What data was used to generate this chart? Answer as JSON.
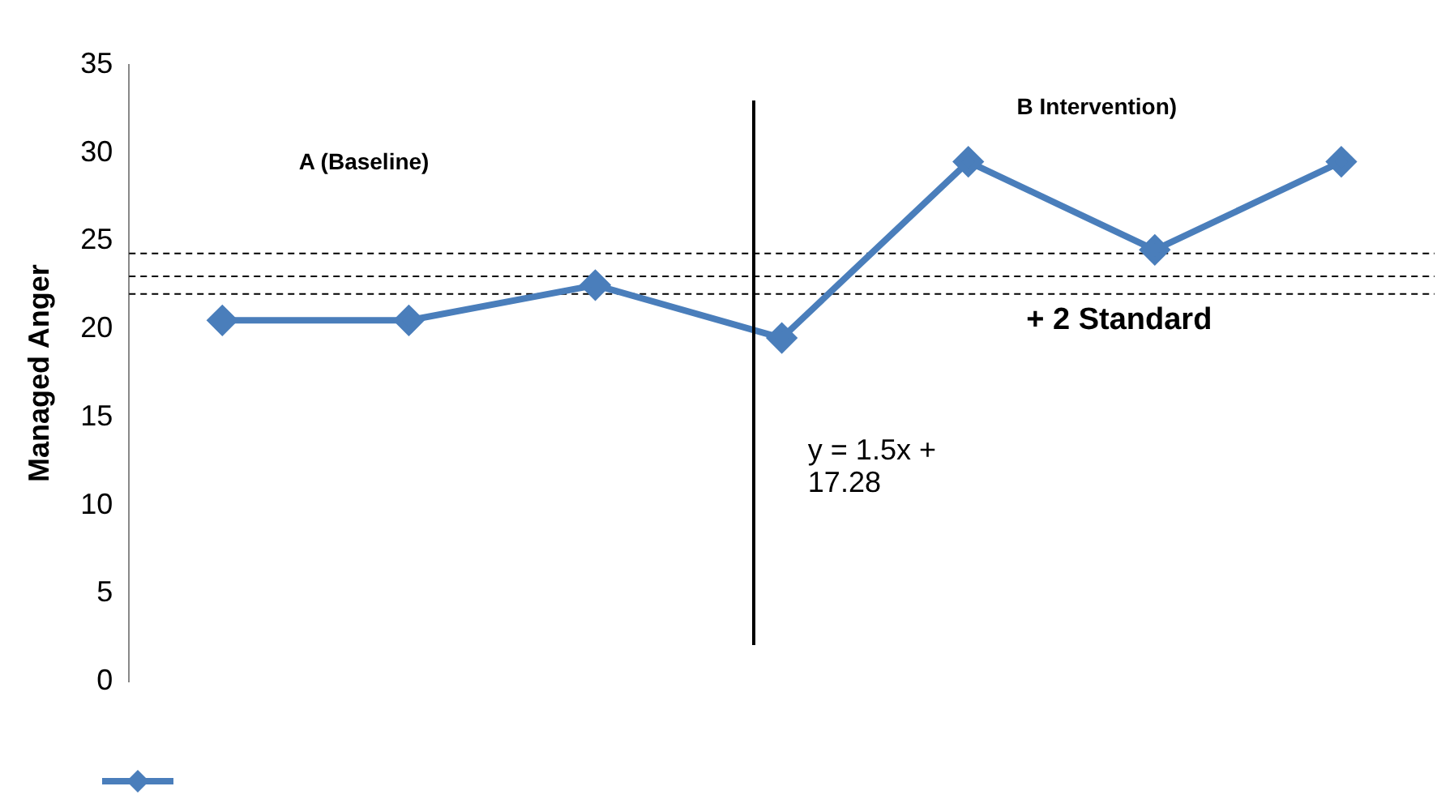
{
  "chart_data": {
    "type": "line",
    "ylabel": "Managed Anger",
    "categories": [
      null,
      null,
      null,
      null,
      null,
      null,
      null
    ],
    "series": [
      {
        "color": "#4a7ebb",
        "values": [
          20.5,
          20.5,
          22.5,
          19.5,
          29.5,
          24.5,
          29.5
        ]
      }
    ],
    "ylim": [
      0,
      35
    ],
    "yticks": [
      0,
      5,
      10,
      15,
      20,
      25,
      30,
      35
    ],
    "grid": false,
    "marker": "diamond",
    "line_style": "solid",
    "ref_lines": [
      {
        "axis": "y",
        "value": 24.3,
        "label": "+ 2 Standard",
        "line_style": "dashed",
        "color": "#000000"
      },
      {
        "axis": "y",
        "value": 23,
        "line_style": "dashed",
        "color": "#000000"
      },
      {
        "axis": "y",
        "value": 22,
        "line_style": "dashed",
        "color": "#000000"
      }
    ],
    "annotations": [
      "A (Baseline)",
      "B Intervention)",
      "y = 1.5x + 17.28"
    ]
  }
}
